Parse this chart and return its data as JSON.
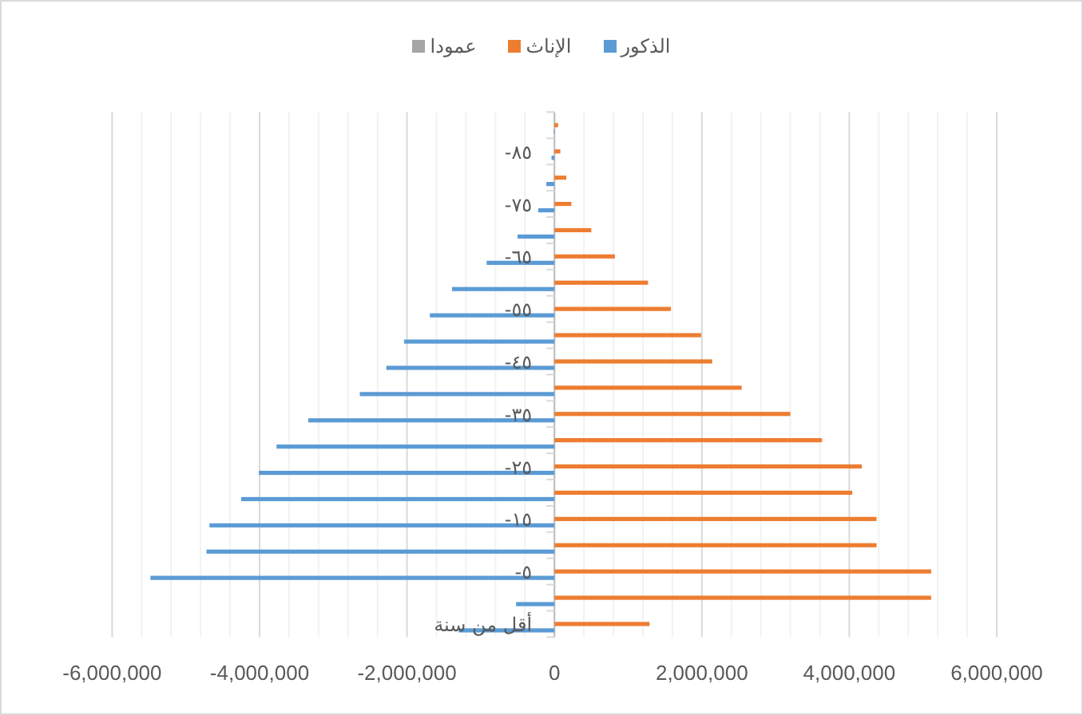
{
  "chart_data": {
    "type": "bar",
    "orientation": "horizontal",
    "categories": [
      null,
      "٨٥-",
      null,
      "٧٥-",
      null,
      "٦٥-",
      null,
      "٥٥-",
      null,
      "٤٥-",
      null,
      "٣٥-",
      null,
      "٢٥-",
      null,
      "١٥-",
      null,
      "٥-",
      null,
      "أقل من سنة"
    ],
    "series": [
      {
        "name": "الذكور",
        "color": "#5b9bd5",
        "values": [
          -10000,
          -40000,
          -110000,
          -220000,
          -500000,
          -920000,
          -1390000,
          -1690000,
          -2040000,
          -2280000,
          -2640000,
          -3340000,
          -3770000,
          -4010000,
          -4250000,
          -4680000,
          -4720000,
          -5480000,
          -520000,
          -1300000
        ]
      },
      {
        "name": "الإناث",
        "color": "#ed7d31",
        "values": [
          50000,
          80000,
          160000,
          230000,
          500000,
          820000,
          1270000,
          1580000,
          1990000,
          2140000,
          2540000,
          3200000,
          3630000,
          4170000,
          4040000,
          4370000,
          4370000,
          5110000,
          5110000,
          1290000
        ]
      },
      {
        "name": "عمودا",
        "color": "#a5a5a5",
        "values": [
          null,
          null,
          null,
          null,
          null,
          null,
          null,
          null,
          null,
          null,
          null,
          null,
          null,
          null,
          null,
          null,
          null,
          null,
          null,
          null
        ]
      }
    ],
    "xlim": [
      -6000000,
      6000000
    ],
    "xticks": [
      {
        "value": -6000000,
        "label": "-6,000,000"
      },
      {
        "value": -4000000,
        "label": "-4,000,000"
      },
      {
        "value": -2000000,
        "label": "-2,000,000"
      },
      0,
      {
        "value": 2000000,
        "label": "2,000,000"
      },
      {
        "value": 4000000,
        "label": "4,000,000"
      },
      {
        "value": 6000000,
        "label": "6,000,000"
      }
    ],
    "grid": "x",
    "legend": "top"
  }
}
